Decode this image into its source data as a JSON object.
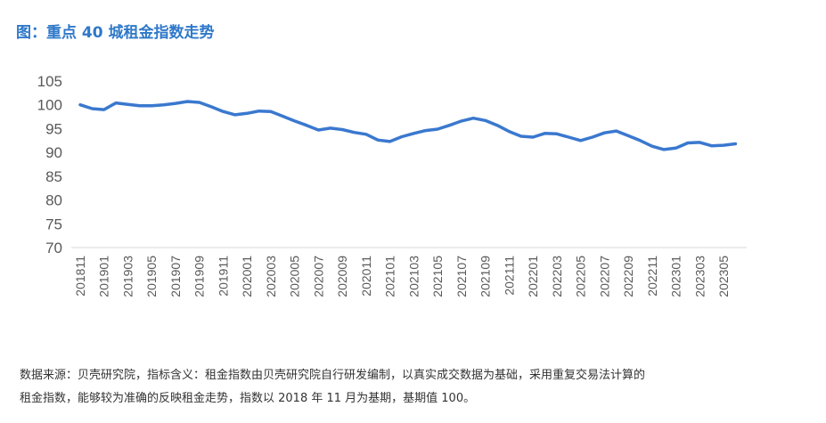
{
  "title": "图：重点 40 城租金指数走势",
  "footnote": {
    "line1": "数据来源：贝壳研究院，指标含义：租金指数由贝壳研究院自行研发编制，以真实成交数据为基础，采用重复交易法计算的",
    "line2": "租金指数，能够较为准确的反映租金走势，指数以 2018 年 11 月为基期，基期值 100。"
  },
  "chart_data": {
    "type": "line",
    "title": "图：重点 40 城租金指数走势",
    "xlabel": "",
    "ylabel": "",
    "ylim": [
      70,
      105
    ],
    "yticks": [
      70,
      75,
      80,
      85,
      90,
      95,
      100,
      105
    ],
    "grid": false,
    "line_color": "#3a78cf",
    "x": [
      "201811",
      "201812",
      "201901",
      "201902",
      "201903",
      "201904",
      "201905",
      "201906",
      "201907",
      "201908",
      "201909",
      "201910",
      "201911",
      "201912",
      "202001",
      "202002",
      "202003",
      "202004",
      "202005",
      "202006",
      "202007",
      "202008",
      "202009",
      "202010",
      "202011",
      "202012",
      "202101",
      "202102",
      "202103",
      "202104",
      "202105",
      "202106",
      "202107",
      "202108",
      "202109",
      "202110",
      "202111",
      "202112",
      "202201",
      "202202",
      "202203",
      "202204",
      "202205",
      "202206",
      "202207",
      "202208",
      "202209",
      "202210",
      "202211",
      "202212",
      "202301",
      "202302",
      "202303",
      "202304",
      "202305",
      "202306"
    ],
    "xtick_labels": [
      "201811",
      "201901",
      "201903",
      "201905",
      "201907",
      "201909",
      "201911",
      "202001",
      "202003",
      "202005",
      "202007",
      "202009",
      "202011",
      "202101",
      "202103",
      "202105",
      "202107",
      "202109",
      "202111",
      "202201",
      "202203",
      "202205",
      "202207",
      "202209",
      "202211",
      "202301",
      "202303",
      "202305"
    ],
    "values": [
      100.0,
      99.2,
      99.0,
      100.4,
      100.1,
      99.8,
      99.8,
      100.0,
      100.3,
      100.7,
      100.5,
      99.6,
      98.6,
      97.9,
      98.2,
      98.7,
      98.6,
      97.6,
      96.6,
      95.7,
      94.7,
      95.1,
      94.8,
      94.2,
      93.8,
      92.6,
      92.3,
      93.3,
      94.0,
      94.6,
      94.9,
      95.7,
      96.6,
      97.2,
      96.7,
      95.7,
      94.4,
      93.4,
      93.2,
      94.0,
      93.9,
      93.2,
      92.5,
      93.2,
      94.1,
      94.5,
      93.5,
      92.5,
      91.3,
      90.6,
      90.9,
      92.0,
      92.1,
      91.4,
      91.5,
      91.8
    ]
  }
}
